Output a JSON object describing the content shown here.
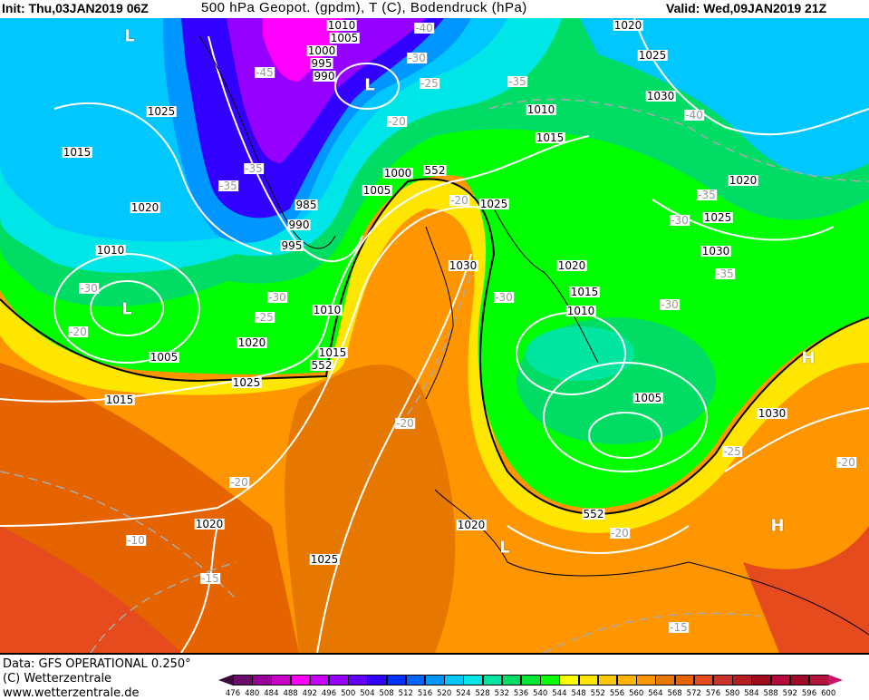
{
  "header": {
    "init": "Init: Thu,03JAN2019 06Z",
    "title": "500 hPa Geopot. (gpdm), T (C), Bodendruck (hPa)",
    "valid": "Valid: Wed,09JAN2019 21Z"
  },
  "map": {
    "pressure_labels": [
      "1010",
      "1005",
      "1000",
      "995",
      "990",
      "1025",
      "1015",
      "1020",
      "1010",
      "1005",
      "1020",
      "1015",
      "1025",
      "1010",
      "1015",
      "985",
      "990",
      "995",
      "1000",
      "1005",
      "1025",
      "1030",
      "1020",
      "1015",
      "1010",
      "1005",
      "1010",
      "1015",
      "1020",
      "1025",
      "1030",
      "1020",
      "1025",
      "1030",
      "1030",
      "1020",
      "1020",
      "1025"
    ],
    "geopotential_labels": [
      "552",
      "552",
      "552"
    ],
    "temperature_labels": [
      "-40",
      "-45",
      "-30",
      "-25",
      "-35",
      "-20",
      "-35",
      "-35",
      "-20",
      "-30",
      "-20",
      "-30",
      "-25",
      "-30",
      "-30",
      "-35",
      "-30",
      "-35",
      "-40",
      "-20",
      "-20",
      "-25",
      "-20",
      "-20",
      "-10",
      "-15",
      "-15"
    ],
    "pressure_centers": [
      "L",
      "L",
      "L",
      "L",
      "H",
      "H"
    ]
  },
  "footer": {
    "data_source": "Data: GFS OPERATIONAL 0.250°",
    "copyright": "(C) Wetterzentrale",
    "url": "www.wetterzentrale.de"
  },
  "legend": {
    "ticks": [
      "476",
      "480",
      "484",
      "488",
      "492",
      "496",
      "500",
      "504",
      "508",
      "512",
      "516",
      "520",
      "524",
      "528",
      "532",
      "536",
      "540",
      "544",
      "548",
      "552",
      "556",
      "560",
      "564",
      "568",
      "572",
      "576",
      "580",
      "584",
      "588",
      "592",
      "596",
      "600"
    ],
    "colors": [
      "#6b0b6b",
      "#960096",
      "#c800c8",
      "#ff00ff",
      "#c800ff",
      "#9600ff",
      "#6400ff",
      "#3200ff",
      "#0032ff",
      "#0064ff",
      "#0096ff",
      "#00c8ff",
      "#00e6e6",
      "#00e6a0",
      "#00dc64",
      "#00e632",
      "#00ff00",
      "#ffff00",
      "#ffe600",
      "#ffc800",
      "#ffb400",
      "#ff9600",
      "#e67800",
      "#e66400",
      "#e64b1e",
      "#c83228",
      "#b41e1e",
      "#a00a1e",
      "#b40a3c",
      "#a00a28",
      "#b4143c"
    ],
    "low_arrow_color": "#3a0a3a",
    "high_arrow_color": "#c81464"
  }
}
